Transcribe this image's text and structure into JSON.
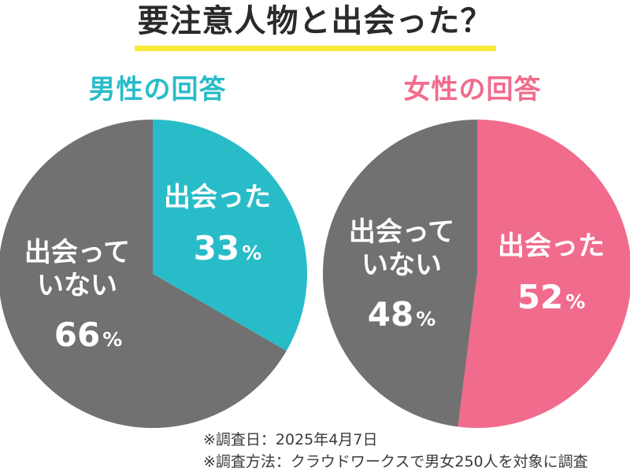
{
  "title": "要注意人物と出会った？",
  "colors": {
    "male_accent": "#28bcc8",
    "female_accent": "#f16b8d",
    "gray": "#717171",
    "title_underline": "#f7ea3b"
  },
  "chart_data": [
    {
      "type": "pie",
      "title": "男性の回答",
      "slices": [
        {
          "label": "出会った",
          "value": 33,
          "color": "#28bcc8"
        },
        {
          "label": "出会って いない",
          "value": 66,
          "color": "#717171"
        }
      ]
    },
    {
      "type": "pie",
      "title": "女性の回答",
      "slices": [
        {
          "label": "出会った",
          "value": 52,
          "color": "#f16b8d"
        },
        {
          "label": "出会って いない",
          "value": 48,
          "color": "#717171"
        }
      ]
    }
  ],
  "notes": {
    "date": "※調査日：2025年4月7日",
    "method": "※調査方法：クラウドワークスで男女250人を対象に調査"
  }
}
